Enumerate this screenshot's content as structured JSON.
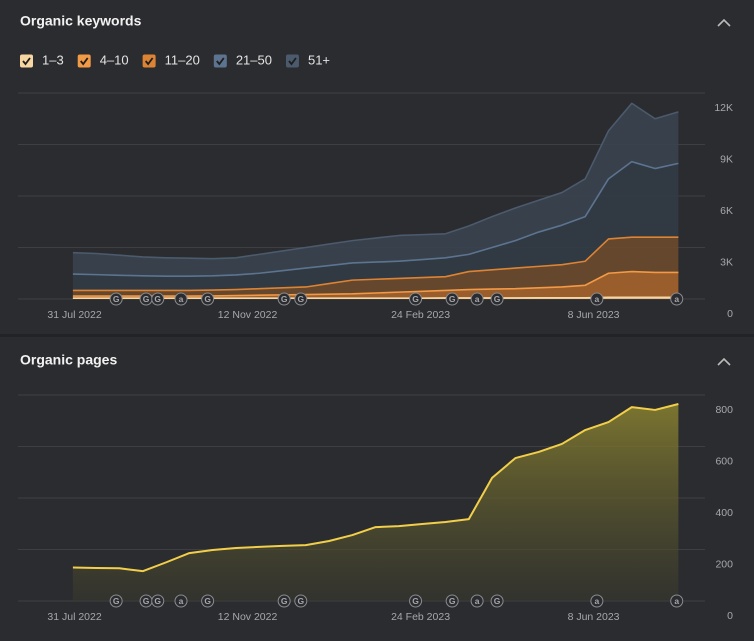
{
  "chart_data": [
    {
      "type": "area",
      "stacked": true,
      "title": "Organic keywords",
      "x": [
        "2022-07-30",
        "2022-08-13",
        "2022-08-27",
        "2022-09-10",
        "2022-09-24",
        "2022-10-08",
        "2022-10-22",
        "2022-11-05",
        "2022-11-19",
        "2022-12-03",
        "2022-12-17",
        "2022-12-31",
        "2023-01-14",
        "2023-01-28",
        "2023-02-11",
        "2023-02-25",
        "2023-03-11",
        "2023-03-25",
        "2023-04-08",
        "2023-04-22",
        "2023-05-06",
        "2023-05-20",
        "2023-06-03",
        "2023-06-17",
        "2023-07-01",
        "2023-07-15",
        "2023-07-29"
      ],
      "series": [
        {
          "name": "1–3",
          "color": "#f8d6a2",
          "values": [
            50,
            50,
            50,
            50,
            50,
            50,
            50,
            50,
            50,
            50,
            50,
            50,
            50,
            50,
            50,
            50,
            60,
            60,
            60,
            60,
            70,
            70,
            70,
            100,
            100,
            100,
            100
          ]
        },
        {
          "name": "4–10",
          "color": "#f29a45",
          "values": [
            120,
            120,
            120,
            120,
            120,
            120,
            130,
            150,
            170,
            190,
            210,
            230,
            250,
            300,
            350,
            400,
            440,
            490,
            520,
            540,
            580,
            630,
            730,
            1400,
            1500,
            1450,
            1450
          ]
        },
        {
          "name": "11–20",
          "color": "#dc8434",
          "values": [
            330,
            330,
            330,
            330,
            330,
            330,
            340,
            350,
            380,
            410,
            440,
            620,
            800,
            800,
            800,
            800,
            800,
            1050,
            1120,
            1200,
            1250,
            1300,
            1400,
            2000,
            2000,
            2050,
            2050
          ]
        },
        {
          "name": "21–50",
          "color": "#5c7490",
          "values": [
            950,
            920,
            880,
            850,
            830,
            830,
            830,
            850,
            900,
            1000,
            1100,
            1050,
            1000,
            1000,
            1000,
            1050,
            1100,
            1000,
            1300,
            1600,
            2000,
            2300,
            2600,
            3500,
            4400,
            4000,
            4300
          ]
        },
        {
          "name": "51+",
          "color": "#4b5a6c",
          "values": [
            1250,
            1230,
            1170,
            1100,
            1070,
            1050,
            1000,
            1000,
            1100,
            1150,
            1200,
            1250,
            1300,
            1400,
            1500,
            1450,
            1400,
            1650,
            1800,
            1900,
            1850,
            1900,
            2200,
            2800,
            3400,
            2900,
            3000
          ]
        }
      ],
      "xlim": [
        "2022-06-27",
        "2023-08-14"
      ],
      "xticks": [
        {
          "value": "2022-07-31",
          "label": "31 Jul 2022"
        },
        {
          "value": "2022-11-12",
          "label": "12 Nov 2022"
        },
        {
          "value": "2023-02-24",
          "label": "24 Feb 2023"
        },
        {
          "value": "2023-06-08",
          "label": "8 Jun 2023"
        }
      ],
      "ylim": [
        0,
        12000
      ],
      "yticks": [
        0,
        {
          "value": 3000,
          "label": "3K"
        },
        {
          "value": 6000,
          "label": "6K"
        },
        {
          "value": 9000,
          "label": "9K"
        },
        {
          "value": 12000,
          "label": "12K"
        }
      ],
      "grid": true,
      "annotations": [
        {
          "x": "2022-08-25",
          "label": "G"
        },
        {
          "x": "2022-09-12",
          "label": "G"
        },
        {
          "x": "2022-09-19",
          "label": "G"
        },
        {
          "x": "2022-10-03",
          "label": "a"
        },
        {
          "x": "2022-10-19",
          "label": "G"
        },
        {
          "x": "2022-12-04",
          "label": "G"
        },
        {
          "x": "2022-12-14",
          "label": "G"
        },
        {
          "x": "2023-02-21",
          "label": "G"
        },
        {
          "x": "2023-03-15",
          "label": "G"
        },
        {
          "x": "2023-03-30",
          "label": "a"
        },
        {
          "x": "2023-04-11",
          "label": "G"
        },
        {
          "x": "2023-06-10",
          "label": "a"
        },
        {
          "x": "2023-07-28",
          "label": "a"
        }
      ]
    },
    {
      "type": "area",
      "title": "Organic pages",
      "color": "#f2cf4a",
      "x": [
        "2022-07-30",
        "2022-08-13",
        "2022-08-27",
        "2022-09-10",
        "2022-09-24",
        "2022-10-08",
        "2022-10-22",
        "2022-11-05",
        "2022-11-19",
        "2022-12-03",
        "2022-12-17",
        "2022-12-31",
        "2023-01-14",
        "2023-01-28",
        "2023-02-11",
        "2023-02-25",
        "2023-03-11",
        "2023-03-25",
        "2023-04-08",
        "2023-04-22",
        "2023-05-06",
        "2023-05-20",
        "2023-06-03",
        "2023-06-17",
        "2023-07-01",
        "2023-07-15",
        "2023-07-29"
      ],
      "values": [
        130,
        128,
        127,
        116,
        150,
        186,
        198,
        206,
        210,
        214,
        217,
        233,
        256,
        287,
        291,
        299,
        307,
        318,
        478,
        555,
        579,
        610,
        664,
        695,
        753,
        742,
        765
      ],
      "xlim": [
        "2022-06-27",
        "2023-08-14"
      ],
      "xticks": [
        {
          "value": "2022-07-31",
          "label": "31 Jul 2022"
        },
        {
          "value": "2022-11-12",
          "label": "12 Nov 2022"
        },
        {
          "value": "2023-02-24",
          "label": "24 Feb 2023"
        },
        {
          "value": "2023-06-08",
          "label": "8 Jun 2023"
        }
      ],
      "ylim": [
        0,
        800
      ],
      "yticks": [
        0,
        200,
        400,
        600,
        800
      ],
      "grid": true,
      "annotations": [
        {
          "x": "2022-08-25",
          "label": "G"
        },
        {
          "x": "2022-09-12",
          "label": "G"
        },
        {
          "x": "2022-09-19",
          "label": "G"
        },
        {
          "x": "2022-10-03",
          "label": "a"
        },
        {
          "x": "2022-10-19",
          "label": "G"
        },
        {
          "x": "2022-12-04",
          "label": "G"
        },
        {
          "x": "2022-12-14",
          "label": "G"
        },
        {
          "x": "2023-02-21",
          "label": "G"
        },
        {
          "x": "2023-03-15",
          "label": "G"
        },
        {
          "x": "2023-03-30",
          "label": "a"
        },
        {
          "x": "2023-04-11",
          "label": "G"
        },
        {
          "x": "2023-06-10",
          "label": "a"
        },
        {
          "x": "2023-07-28",
          "label": "a"
        }
      ]
    }
  ]
}
